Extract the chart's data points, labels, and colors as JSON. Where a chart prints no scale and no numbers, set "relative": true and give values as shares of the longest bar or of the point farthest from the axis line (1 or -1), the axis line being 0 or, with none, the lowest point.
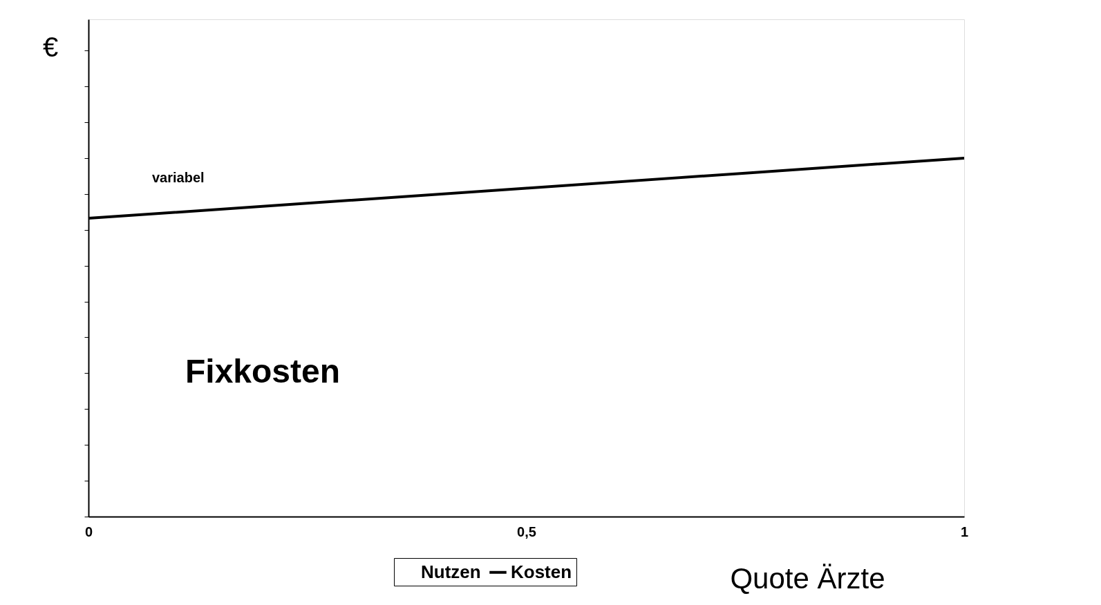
{
  "chart_data": {
    "type": "line",
    "relative": true,
    "xlabel": "Quote Ärzte",
    "ylabel": "€",
    "x": [
      0,
      0.25,
      0.5,
      0.75,
      1
    ],
    "xlim": [
      0,
      1
    ],
    "xticks": [
      0,
      {
        "value": 0.5,
        "label": "0,5"
      },
      1
    ],
    "series": [
      {
        "name": "Nutzen",
        "values": [
          null,
          null,
          null,
          null,
          null
        ]
      },
      {
        "name": "Kosten",
        "color": "#000000",
        "values": [
          0.832,
          0.874,
          0.916,
          0.958,
          1.0
        ]
      }
    ],
    "annotations": [
      "variabel",
      "Fixkosten"
    ],
    "grid": false,
    "legend": "bottom",
    "line_style": "solid",
    "marker": "none"
  }
}
